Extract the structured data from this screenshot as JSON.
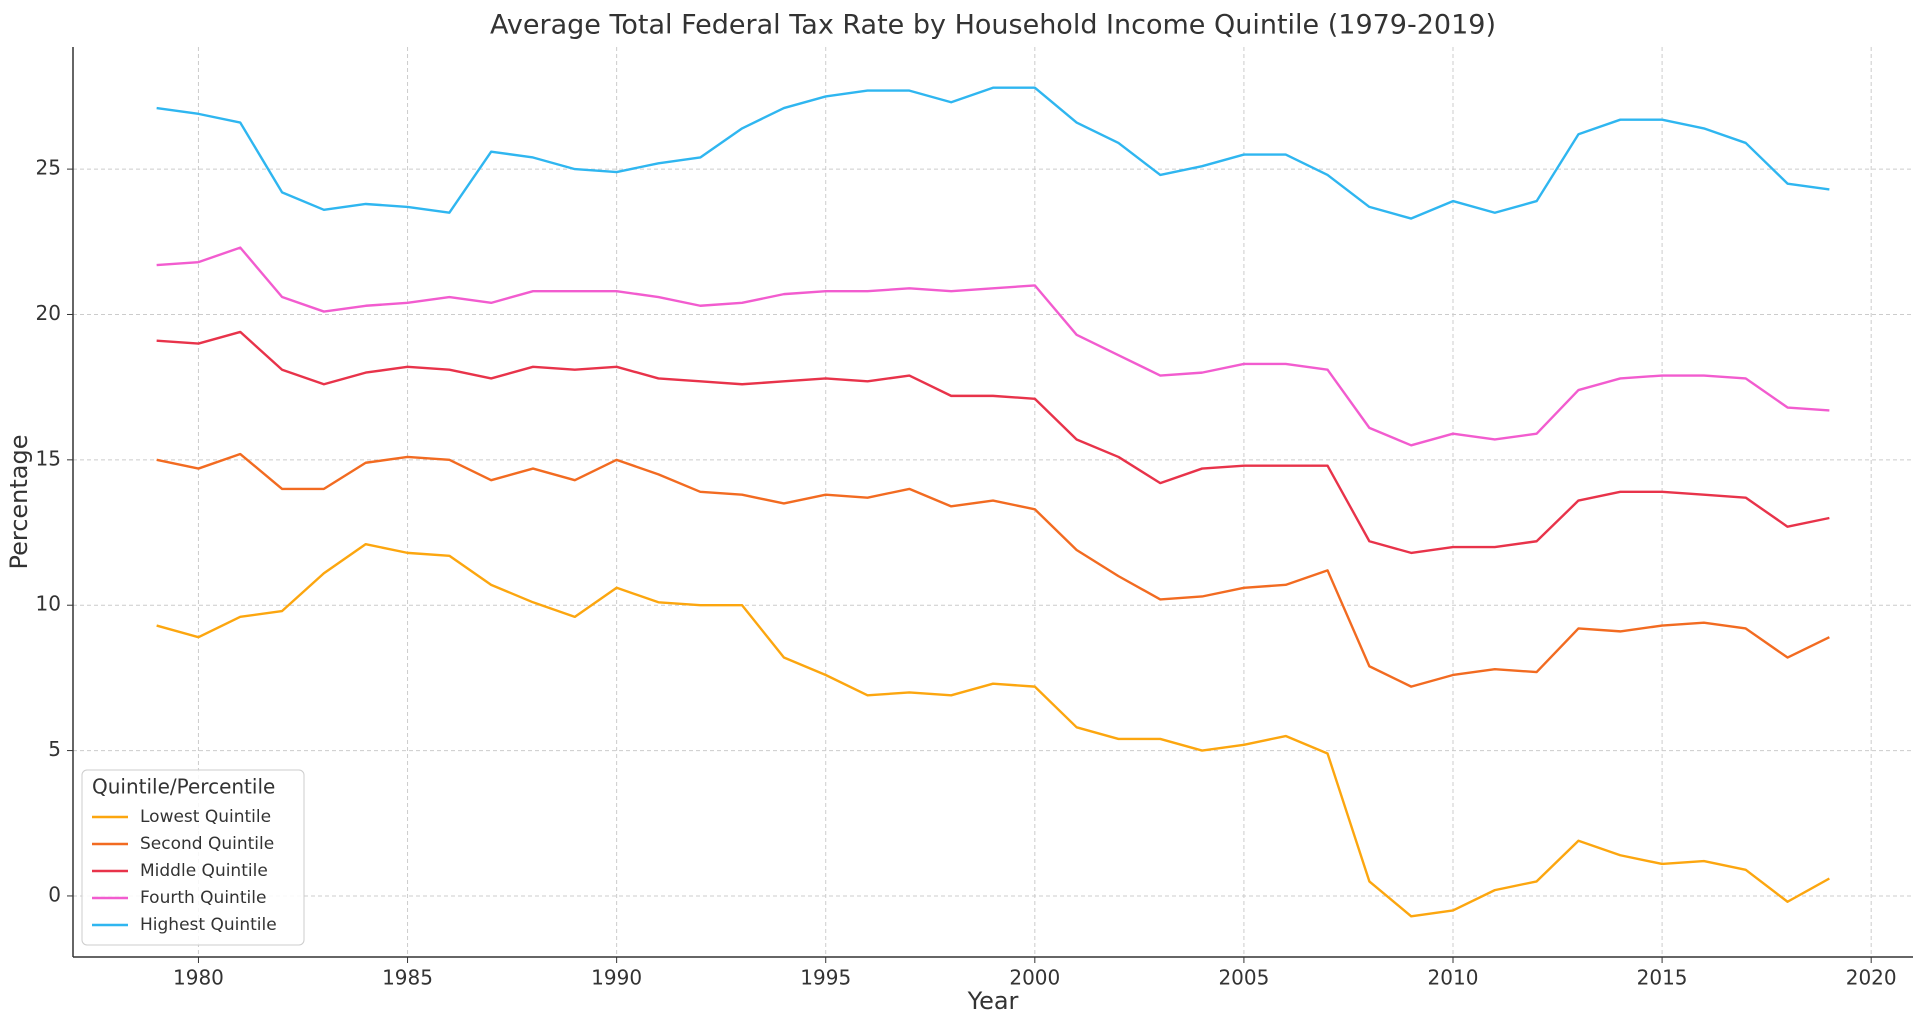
{
  "chart_data": {
    "type": "line",
    "title": "Average Total Federal Tax Rate by Household Income Quintile (1979-2019)",
    "x_label": "Year",
    "y_label": "Percentage",
    "x": [
      1979,
      1980,
      1981,
      1982,
      1983,
      1984,
      1985,
      1986,
      1987,
      1988,
      1989,
      1990,
      1991,
      1992,
      1993,
      1994,
      1995,
      1996,
      1997,
      1998,
      1999,
      2000,
      2001,
      2002,
      2003,
      2004,
      2005,
      2006,
      2007,
      2008,
      2009,
      2010,
      2011,
      2012,
      2013,
      2014,
      2015,
      2016,
      2017,
      2018,
      2019
    ],
    "series": [
      {
        "name": "Lowest Quintile",
        "color": "#fca60f",
        "values": [
          9.3,
          8.9,
          9.6,
          9.8,
          11.1,
          12.1,
          11.8,
          11.7,
          10.7,
          10.1,
          9.6,
          10.6,
          10.1,
          10.0,
          10.0,
          8.2,
          7.6,
          6.9,
          7.0,
          6.9,
          7.3,
          7.2,
          5.8,
          5.4,
          5.4,
          5.0,
          5.2,
          5.5,
          4.9,
          0.5,
          -0.7,
          -0.5,
          0.2,
          0.5,
          1.9,
          1.4,
          1.1,
          1.2,
          0.9,
          -0.2,
          0.6
        ]
      },
      {
        "name": "Second Quintile",
        "color": "#f26b21",
        "values": [
          15.0,
          14.7,
          15.2,
          14.0,
          14.0,
          14.9,
          15.1,
          15.0,
          14.3,
          14.7,
          14.3,
          15.0,
          14.5,
          13.9,
          13.8,
          13.5,
          13.8,
          13.7,
          14.0,
          13.4,
          13.6,
          13.3,
          11.9,
          11.0,
          10.2,
          10.3,
          10.6,
          10.7,
          11.2,
          7.9,
          7.2,
          7.6,
          7.8,
          7.7,
          9.2,
          9.1,
          9.3,
          9.4,
          9.2,
          8.2,
          8.9
        ]
      },
      {
        "name": "Middle Quintile",
        "color": "#e8334a",
        "values": [
          19.1,
          19.0,
          19.4,
          18.1,
          17.6,
          18.0,
          18.2,
          18.1,
          17.8,
          18.2,
          18.1,
          18.2,
          17.8,
          17.7,
          17.6,
          17.7,
          17.8,
          17.7,
          17.9,
          17.2,
          17.2,
          17.1,
          15.7,
          15.1,
          14.2,
          14.7,
          14.8,
          14.8,
          14.8,
          12.2,
          11.8,
          12.0,
          12.0,
          12.2,
          13.6,
          13.9,
          13.9,
          13.8,
          13.7,
          12.7,
          13.0
        ]
      },
      {
        "name": "Fourth Quintile",
        "color": "#f25ccf",
        "values": [
          21.7,
          21.8,
          22.3,
          20.6,
          20.1,
          20.3,
          20.4,
          20.6,
          20.4,
          20.8,
          20.8,
          20.8,
          20.6,
          20.3,
          20.4,
          20.7,
          20.8,
          20.8,
          20.9,
          20.8,
          20.9,
          21.0,
          19.3,
          18.6,
          17.9,
          18.0,
          18.3,
          18.3,
          18.1,
          16.1,
          15.5,
          15.9,
          15.7,
          15.9,
          17.4,
          17.8,
          17.9,
          17.9,
          17.8,
          16.8,
          16.7
        ]
      },
      {
        "name": "Highest Quintile",
        "color": "#2fb6f0",
        "values": [
          27.1,
          26.9,
          26.6,
          24.2,
          23.6,
          23.8,
          23.7,
          23.5,
          25.6,
          25.4,
          25.0,
          24.9,
          25.2,
          25.4,
          26.4,
          27.1,
          27.5,
          27.7,
          27.7,
          27.3,
          27.8,
          27.8,
          26.6,
          25.9,
          24.8,
          25.1,
          25.5,
          25.5,
          24.8,
          23.7,
          23.3,
          23.9,
          23.5,
          23.9,
          26.2,
          26.7,
          26.7,
          26.4,
          25.9,
          24.5,
          24.3
        ]
      }
    ],
    "xlim": [
      1977,
      2021
    ],
    "ylim": [
      -2.1,
      29.2
    ],
    "xticks": [
      1980,
      1985,
      1990,
      1995,
      2000,
      2005,
      2010,
      2015,
      2020
    ],
    "yticks": [
      0,
      5,
      10,
      15,
      20,
      25
    ],
    "grid": true,
    "legend_title": "Quintile/Percentile",
    "legend_position": "lower left"
  }
}
